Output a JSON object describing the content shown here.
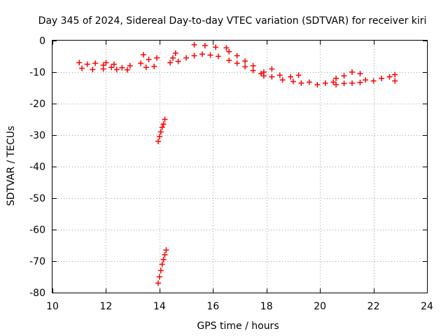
{
  "chart_data": {
    "type": "scatter",
    "title": "Day 345 of 2024, Sidereal Day-to-day VTEC variation (SDTVAR) for receiver kiri",
    "xlabel": "GPS time / hours",
    "ylabel": "SDTVAR / TECUs",
    "xlim": [
      10,
      24
    ],
    "ylim": [
      -80,
      0
    ],
    "xticks": [
      10,
      12,
      14,
      16,
      18,
      20,
      22,
      24
    ],
    "yticks": [
      0,
      -10,
      -20,
      -30,
      -40,
      -50,
      -60,
      -70,
      -80
    ],
    "xtick_labels": [
      "10",
      "12",
      "14",
      "16",
      "18",
      "20",
      "22",
      "24"
    ],
    "ytick_labels": [
      "0",
      "-10",
      "-20",
      "-30",
      "-40",
      "-50",
      "-60",
      "-70",
      "-80"
    ],
    "grid": true,
    "marker": "plus",
    "color": "#ff0000",
    "series": [
      {
        "points": [
          [
            11.0,
            -7.0
          ],
          [
            11.3,
            -7.5
          ],
          [
            11.6,
            -7.2
          ],
          [
            11.9,
            -7.8
          ],
          [
            12.0,
            -7.0
          ],
          [
            11.1,
            -8.8
          ],
          [
            11.5,
            -9.2
          ],
          [
            11.9,
            -9.0
          ],
          [
            12.2,
            -8.5
          ],
          [
            12.4,
            -9.2
          ],
          [
            12.6,
            -8.6
          ],
          [
            12.9,
            -8.0
          ],
          [
            12.3,
            -7.5
          ],
          [
            12.8,
            -9.3
          ],
          [
            13.3,
            -7.2
          ],
          [
            13.6,
            -6.0
          ],
          [
            13.9,
            -5.5
          ],
          [
            13.5,
            -8.5
          ],
          [
            13.8,
            -8.2
          ],
          [
            13.4,
            -4.5
          ],
          [
            14.4,
            -7.0
          ],
          [
            14.7,
            -6.6
          ],
          [
            14.5,
            -5.5
          ],
          [
            14.6,
            -4.0
          ],
          [
            15.0,
            -5.5
          ],
          [
            15.3,
            -4.8
          ],
          [
            15.6,
            -4.3
          ],
          [
            15.9,
            -4.6
          ],
          [
            16.2,
            -5.0
          ],
          [
            15.3,
            -1.3
          ],
          [
            15.7,
            -1.6
          ],
          [
            16.1,
            -2.1
          ],
          [
            16.5,
            -2.3
          ],
          [
            16.6,
            -3.5
          ],
          [
            16.9,
            -4.8
          ],
          [
            17.2,
            -6.5
          ],
          [
            17.5,
            -8.0
          ],
          [
            16.6,
            -6.3
          ],
          [
            16.9,
            -7.2
          ],
          [
            17.2,
            -8.3
          ],
          [
            17.5,
            -9.5
          ],
          [
            17.8,
            -10.5
          ],
          [
            17.9,
            -10.0
          ],
          [
            18.2,
            -9.0
          ],
          [
            17.9,
            -11.2
          ],
          [
            18.2,
            -11.5
          ],
          [
            18.5,
            -11.0
          ],
          [
            18.6,
            -12.5
          ],
          [
            18.9,
            -11.5
          ],
          [
            19.2,
            -11.0
          ],
          [
            19.0,
            -13.0
          ],
          [
            19.3,
            -13.5
          ],
          [
            19.6,
            -13.2
          ],
          [
            19.9,
            -14.0
          ],
          [
            20.2,
            -13.5
          ],
          [
            20.5,
            -13.2
          ],
          [
            20.6,
            -12.0
          ],
          [
            20.9,
            -11.2
          ],
          [
            21.2,
            -10.0
          ],
          [
            21.5,
            -10.5
          ],
          [
            20.6,
            -14.0
          ],
          [
            20.9,
            -13.6
          ],
          [
            21.2,
            -13.5
          ],
          [
            21.5,
            -13.3
          ],
          [
            21.7,
            -12.5
          ],
          [
            22.0,
            -12.8
          ],
          [
            22.3,
            -12.0
          ],
          [
            22.6,
            -11.5
          ],
          [
            22.8,
            -10.8
          ],
          [
            22.8,
            -12.8
          ],
          [
            13.95,
            -32.0
          ],
          [
            14.0,
            -30.5
          ],
          [
            14.05,
            -29.0
          ],
          [
            14.1,
            -27.5
          ],
          [
            14.15,
            -26.5
          ],
          [
            14.2,
            -25.0
          ],
          [
            13.95,
            -77.0
          ],
          [
            14.0,
            -75.0
          ],
          [
            14.05,
            -73.0
          ],
          [
            14.1,
            -71.0
          ],
          [
            14.15,
            -69.5
          ],
          [
            14.2,
            -68.0
          ],
          [
            14.25,
            -66.5
          ]
        ]
      }
    ]
  }
}
